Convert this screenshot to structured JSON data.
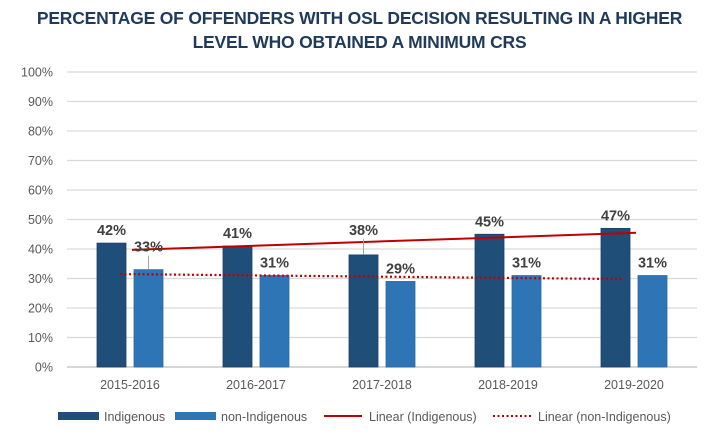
{
  "chart_data": {
    "type": "bar",
    "title": "PERCENTAGE OF OFFENDERS WITH OSL DECISION RESULTING IN A HIGHER LEVEL WHO OBTAINED A MINIMUM CRS",
    "title_lines": [
      "PERCENTAGE OF OFFENDERS WITH OSL DECISION RESULTING IN A HIGHER",
      "LEVEL WHO OBTAINED A MINIMUM CRS"
    ],
    "xlabel": "",
    "ylabel": "",
    "categories": [
      "2015-2016",
      "2016-2017",
      "2017-2018",
      "2018-2019",
      "2019-2020"
    ],
    "ylim": [
      0,
      100
    ],
    "yticks": [
      0,
      10,
      20,
      30,
      40,
      50,
      60,
      70,
      80,
      90,
      100
    ],
    "ytick_labels": [
      "0%",
      "10%",
      "20%",
      "30%",
      "40%",
      "50%",
      "60%",
      "70%",
      "80%",
      "90%",
      "100%"
    ],
    "grid": true,
    "series": [
      {
        "name": "Indigenous",
        "values": [
          42,
          41,
          38,
          45,
          47
        ],
        "labels": [
          "42%",
          "41%",
          "38%",
          "45%",
          "47%"
        ],
        "color": "#1F4E79"
      },
      {
        "name": "non-Indigenous",
        "values": [
          33,
          31,
          29,
          31,
          31
        ],
        "labels": [
          "33%",
          "31%",
          "29%",
          "31%",
          "31%"
        ],
        "color": "#2E75B6"
      }
    ],
    "trendlines": [
      {
        "name": "Linear (Indigenous)",
        "type": "linear",
        "of": "Indigenous",
        "start": 39.7,
        "end": 45.5,
        "color": "#C00000",
        "style": "solid"
      },
      {
        "name": "Linear (non-Indigenous)",
        "type": "linear",
        "of": "non-Indigenous",
        "start": 31.5,
        "end": 29.8,
        "color": "#C00000",
        "style": "dotted"
      }
    ],
    "legend": {
      "position": "bottom",
      "entries": [
        "Indigenous",
        "non-Indigenous",
        "Linear (Indigenous)",
        "Linear (non-Indigenous)"
      ]
    }
  }
}
